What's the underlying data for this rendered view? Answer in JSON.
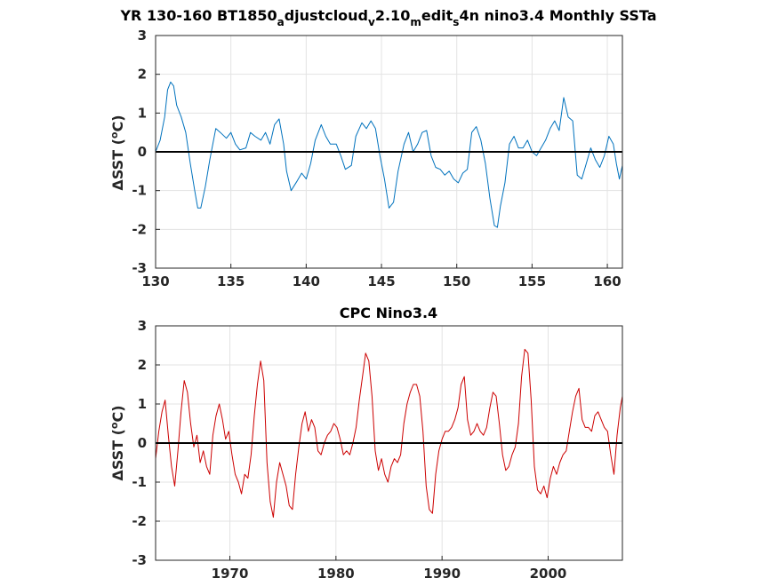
{
  "chart_data": [
    {
      "type": "line",
      "title": {
        "prefix": "YR 130-160 BT1850",
        "sub1": "a",
        "mid1": "djustcloud",
        "sub2": "v",
        "mid2": "2.10",
        "sub3": "m",
        "mid3": "edit",
        "sub4": "s",
        "suffix": "4n nino3.4 Monthly SSTa"
      },
      "ylabel": {
        "prefix": "ΔSST (",
        "sup": "o",
        "suffix": "C)"
      },
      "xlim": [
        130,
        161
      ],
      "ylim": [
        -3,
        3
      ],
      "xticks": [
        "130",
        "135",
        "140",
        "145",
        "150",
        "155",
        "160"
      ],
      "yticks": [
        "3",
        "2",
        "1",
        "0",
        "-1",
        "-2",
        "-3"
      ],
      "grid": true,
      "line_color": "#0072bd",
      "zero_line_color": "#000000",
      "series": [
        {
          "x": [
            130.0,
            130.3,
            130.6,
            130.8,
            131.0,
            131.2,
            131.4,
            131.7,
            132.0,
            132.3,
            132.6,
            132.8,
            133.0,
            133.3,
            133.6,
            134.0,
            134.3,
            134.7,
            135.0,
            135.3,
            135.6,
            136.0,
            136.3,
            136.6,
            137.0,
            137.3,
            137.6,
            137.9,
            138.2,
            138.5,
            138.7,
            139.0,
            139.4,
            139.7,
            140.0,
            140.3,
            140.6,
            141.0,
            141.3,
            141.6,
            142.0,
            142.3,
            142.6,
            143.0,
            143.3,
            143.7,
            144.0,
            144.3,
            144.6,
            144.9,
            145.2,
            145.5,
            145.8,
            146.1,
            146.5,
            146.8,
            147.1,
            147.4,
            147.7,
            148.0,
            148.3,
            148.6,
            148.9,
            149.2,
            149.5,
            149.8,
            150.1,
            150.4,
            150.7,
            151.0,
            151.3,
            151.6,
            151.9,
            152.2,
            152.5,
            152.7,
            152.9,
            153.2,
            153.5,
            153.8,
            154.1,
            154.4,
            154.7,
            155.0,
            155.3,
            155.6,
            155.9,
            156.2,
            156.5,
            156.8,
            157.1,
            157.4,
            157.7,
            158.0,
            158.3,
            158.6,
            158.9,
            159.2,
            159.5,
            159.8,
            160.1,
            160.4,
            160.6,
            160.8,
            161.0
          ],
          "y": [
            0.0,
            0.3,
            0.9,
            1.6,
            1.8,
            1.7,
            1.2,
            0.9,
            0.5,
            -0.3,
            -1.0,
            -1.45,
            -1.45,
            -0.9,
            -0.2,
            0.6,
            0.5,
            0.35,
            0.5,
            0.2,
            0.05,
            0.1,
            0.5,
            0.4,
            0.3,
            0.5,
            0.2,
            0.7,
            0.85,
            0.2,
            -0.5,
            -1.0,
            -0.75,
            -0.55,
            -0.7,
            -0.3,
            0.3,
            0.7,
            0.4,
            0.2,
            0.2,
            -0.1,
            -0.45,
            -0.35,
            0.4,
            0.75,
            0.6,
            0.8,
            0.6,
            -0.1,
            -0.7,
            -1.45,
            -1.3,
            -0.5,
            0.2,
            0.5,
            0.0,
            0.2,
            0.5,
            0.55,
            -0.1,
            -0.4,
            -0.45,
            -0.6,
            -0.5,
            -0.7,
            -0.8,
            -0.55,
            -0.45,
            0.5,
            0.65,
            0.3,
            -0.3,
            -1.2,
            -1.9,
            -1.95,
            -1.4,
            -0.8,
            0.2,
            0.4,
            0.1,
            0.1,
            0.3,
            0.0,
            -0.1,
            0.1,
            0.3,
            0.6,
            0.8,
            0.55,
            1.4,
            0.9,
            0.8,
            -0.6,
            -0.7,
            -0.3,
            0.1,
            -0.2,
            -0.4,
            -0.1,
            0.4,
            0.2,
            -0.3,
            -0.7,
            -0.35
          ]
        }
      ]
    },
    {
      "type": "line",
      "title": "CPC Nino3.4",
      "ylabel": {
        "prefix": "ΔSST (",
        "sup": "o",
        "suffix": "C)"
      },
      "xlim": [
        1963,
        2007
      ],
      "ylim": [
        -3,
        3
      ],
      "xticks": [
        "1970",
        "1980",
        "1990",
        "2000"
      ],
      "yticks": [
        "3",
        "2",
        "1",
        "0",
        "-1",
        "-2",
        "-3"
      ],
      "grid": true,
      "line_color": "#cc0000",
      "zero_line_color": "#000000",
      "series": [
        {
          "x": [
            1963.0,
            1963.3,
            1963.6,
            1963.9,
            1964.2,
            1964.5,
            1964.8,
            1965.1,
            1965.4,
            1965.7,
            1966.0,
            1966.3,
            1966.6,
            1966.9,
            1967.2,
            1967.5,
            1967.8,
            1968.1,
            1968.4,
            1968.7,
            1969.0,
            1969.3,
            1969.6,
            1969.9,
            1970.2,
            1970.5,
            1970.8,
            1971.1,
            1971.4,
            1971.7,
            1972.0,
            1972.3,
            1972.6,
            1972.9,
            1973.2,
            1973.5,
            1973.8,
            1974.1,
            1974.4,
            1974.7,
            1975.0,
            1975.3,
            1975.6,
            1975.9,
            1976.2,
            1976.5,
            1976.8,
            1977.1,
            1977.4,
            1977.7,
            1978.0,
            1978.3,
            1978.6,
            1978.9,
            1979.2,
            1979.5,
            1979.8,
            1980.1,
            1980.4,
            1980.7,
            1981.0,
            1981.3,
            1981.6,
            1981.9,
            1982.2,
            1982.5,
            1982.8,
            1983.1,
            1983.4,
            1983.7,
            1984.0,
            1984.3,
            1984.6,
            1984.9,
            1985.2,
            1985.5,
            1985.8,
            1986.1,
            1986.4,
            1986.7,
            1987.0,
            1987.3,
            1987.6,
            1987.9,
            1988.2,
            1988.5,
            1988.8,
            1989.1,
            1989.4,
            1989.7,
            1990.0,
            1990.3,
            1990.6,
            1990.9,
            1991.2,
            1991.5,
            1991.8,
            1992.1,
            1992.4,
            1992.7,
            1993.0,
            1993.3,
            1993.6,
            1993.9,
            1994.2,
            1994.5,
            1994.8,
            1995.1,
            1995.4,
            1995.7,
            1996.0,
            1996.3,
            1996.6,
            1996.9,
            1997.2,
            1997.5,
            1997.8,
            1998.1,
            1998.4,
            1998.7,
            1999.0,
            1999.3,
            1999.6,
            1999.9,
            2000.2,
            2000.5,
            2000.8,
            2001.1,
            2001.4,
            2001.7,
            2002.0,
            2002.3,
            2002.6,
            2002.9,
            2003.2,
            2003.5,
            2003.8,
            2004.1,
            2004.4,
            2004.7,
            2005.0,
            2005.3,
            2005.6,
            2005.9,
            2006.2,
            2006.5,
            2006.8,
            2007.0
          ],
          "y": [
            -0.4,
            0.3,
            0.8,
            1.1,
            0.2,
            -0.6,
            -1.1,
            -0.2,
            0.8,
            1.6,
            1.3,
            0.5,
            -0.1,
            0.2,
            -0.5,
            -0.2,
            -0.6,
            -0.8,
            0.2,
            0.7,
            1.0,
            0.6,
            0.1,
            0.3,
            -0.3,
            -0.8,
            -1.0,
            -1.3,
            -0.8,
            -0.9,
            -0.3,
            0.7,
            1.5,
            2.1,
            1.6,
            -0.5,
            -1.5,
            -1.9,
            -1.0,
            -0.5,
            -0.8,
            -1.1,
            -1.6,
            -1.7,
            -0.8,
            -0.1,
            0.5,
            0.8,
            0.3,
            0.6,
            0.4,
            -0.2,
            -0.3,
            0.0,
            0.2,
            0.3,
            0.5,
            0.4,
            0.1,
            -0.3,
            -0.2,
            -0.3,
            0.0,
            0.4,
            1.1,
            1.7,
            2.3,
            2.1,
            1.2,
            -0.2,
            -0.7,
            -0.4,
            -0.8,
            -1.0,
            -0.6,
            -0.4,
            -0.5,
            -0.3,
            0.5,
            1.0,
            1.3,
            1.5,
            1.5,
            1.2,
            0.3,
            -1.1,
            -1.7,
            -1.8,
            -0.8,
            -0.2,
            0.1,
            0.3,
            0.3,
            0.4,
            0.6,
            0.9,
            1.5,
            1.7,
            0.6,
            0.2,
            0.3,
            0.5,
            0.3,
            0.2,
            0.4,
            0.9,
            1.3,
            1.2,
            0.5,
            -0.3,
            -0.7,
            -0.6,
            -0.3,
            -0.1,
            0.5,
            1.7,
            2.4,
            2.3,
            1.1,
            -0.6,
            -1.2,
            -1.3,
            -1.1,
            -1.4,
            -0.9,
            -0.6,
            -0.8,
            -0.5,
            -0.3,
            -0.2,
            0.3,
            0.8,
            1.2,
            1.4,
            0.6,
            0.4,
            0.4,
            0.3,
            0.7,
            0.8,
            0.6,
            0.4,
            0.3,
            -0.3,
            -0.8,
            0.2,
            0.9,
            1.2
          ]
        }
      ]
    }
  ]
}
